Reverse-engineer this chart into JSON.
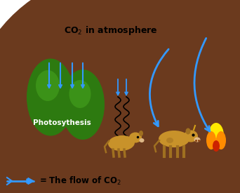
{
  "cloud_text": "CO$_2$ in atmosphere",
  "tree_label": "Photosythesis",
  "legend_text": "= The flow of CO$_2$",
  "arrow_color": "#3399ff",
  "tree_green_dark": "#2d7a10",
  "tree_green_light": "#4aaa20",
  "tree_trunk": "#8B4513",
  "grass_green": "#2e8b00",
  "cloud_color_light": "#d8d8d8",
  "cloud_color_dark": "#b0b0b0",
  "cow_color": "#c8922a",
  "cow_dark": "#a07020",
  "fire_yellow": "#FFE800",
  "fire_orange": "#FF8C00",
  "fire_red": "#CC2200",
  "fire_glow": "#FFFF99",
  "log_color": "#6b3a1e"
}
